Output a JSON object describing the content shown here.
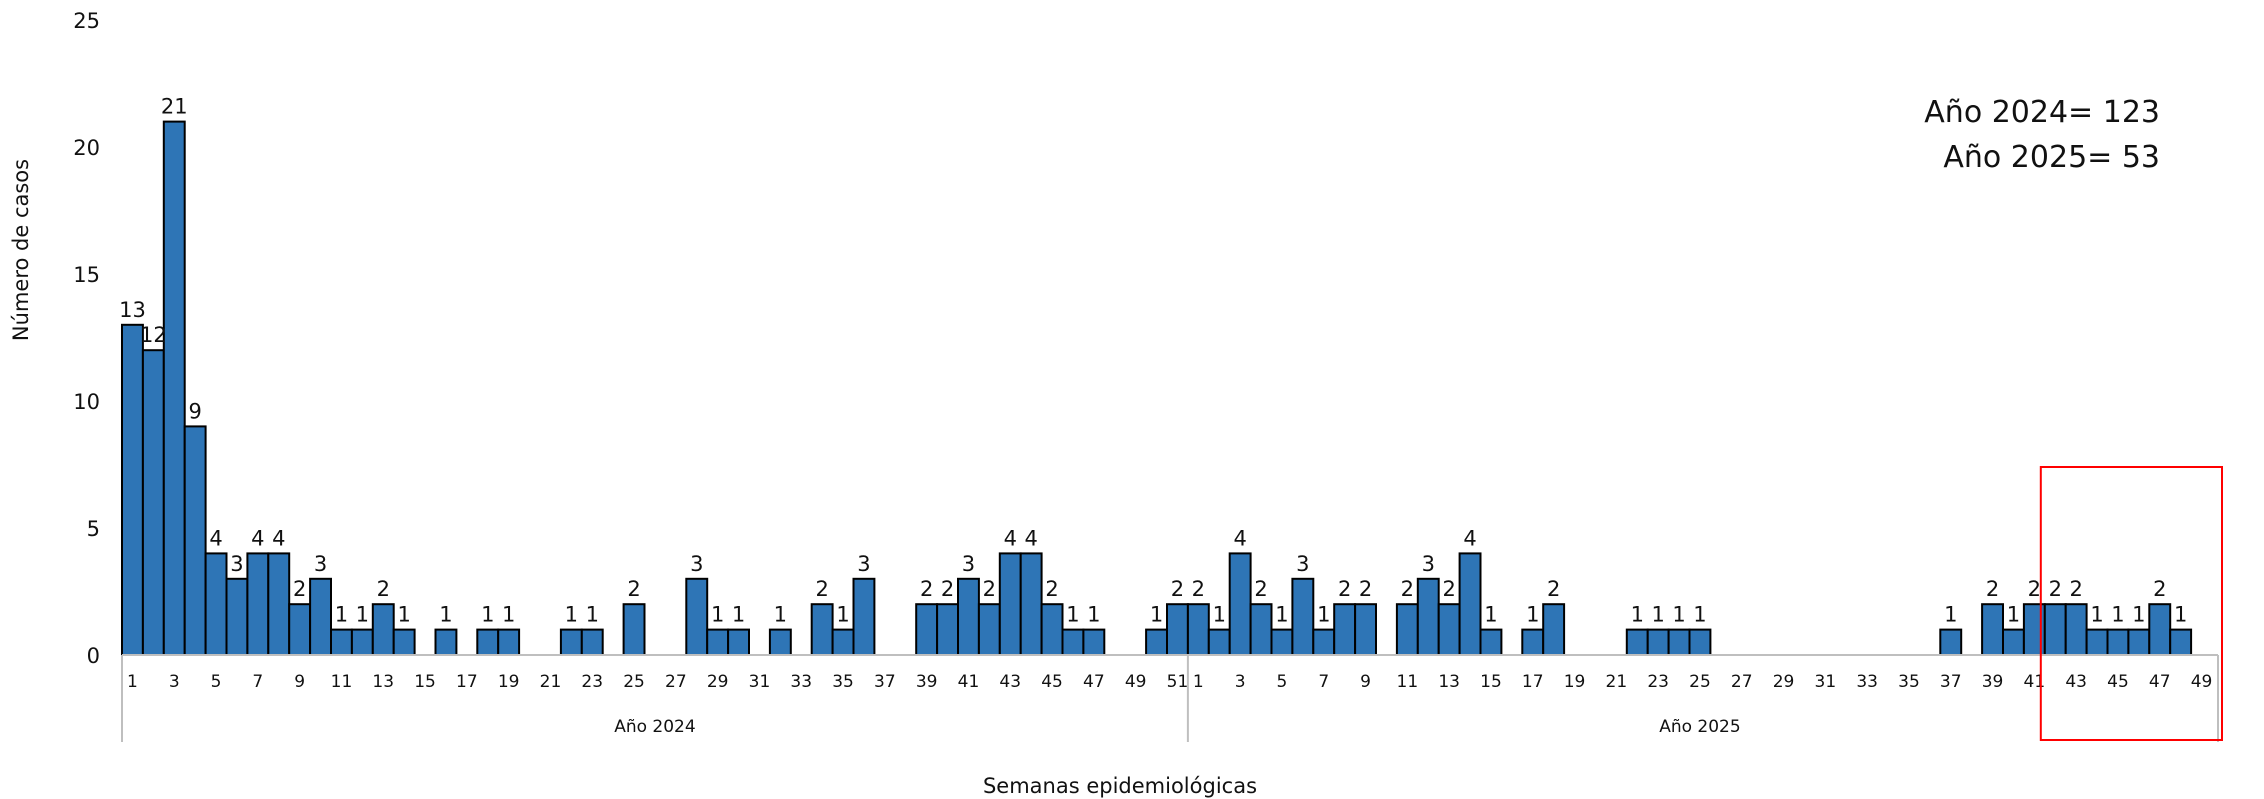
{
  "chart_data": {
    "type": "bar",
    "xlabel": "Semanas epidemiológicas",
    "ylabel": "Número de casos",
    "ylim": [
      0,
      25
    ],
    "yticks": [
      0,
      5,
      10,
      15,
      20,
      25
    ],
    "grid": false,
    "bar_color": "#2E75B6",
    "highlight_color": "#FF0000",
    "annotation_lines": [
      "Año 2024= 123",
      "Año 2025= 53"
    ],
    "groups": [
      {
        "label": "Año 2024",
        "weeks": [
          1,
          2,
          3,
          4,
          5,
          6,
          7,
          8,
          9,
          10,
          11,
          12,
          13,
          14,
          15,
          16,
          17,
          18,
          19,
          20,
          21,
          22,
          23,
          24,
          25,
          26,
          27,
          28,
          29,
          30,
          31,
          32,
          33,
          34,
          35,
          36,
          37,
          38,
          39,
          40,
          41,
          42,
          43,
          44,
          45,
          46,
          47,
          48,
          49,
          50,
          51
        ],
        "values": [
          13,
          12,
          21,
          9,
          4,
          3,
          4,
          4,
          2,
          3,
          1,
          1,
          2,
          1,
          0,
          1,
          0,
          1,
          1,
          0,
          0,
          1,
          1,
          0,
          2,
          0,
          0,
          3,
          1,
          1,
          0,
          1,
          0,
          2,
          1,
          3,
          0,
          0,
          2,
          2,
          3,
          2,
          4,
          4,
          2,
          1,
          1,
          0,
          0,
          1,
          2
        ],
        "tick_labels": [
          "1",
          "3",
          "5",
          "7",
          "9",
          "11",
          "13",
          "15",
          "17",
          "19",
          "21",
          "23",
          "25",
          "27",
          "29",
          "31",
          "33",
          "35",
          "37",
          "39",
          "41",
          "43",
          "45",
          "47",
          "49",
          "51"
        ]
      },
      {
        "label": "Año 2025",
        "weeks": [
          1,
          2,
          3,
          4,
          5,
          6,
          7,
          8,
          9,
          10,
          11,
          12,
          13,
          14,
          15,
          16,
          17,
          18,
          19,
          20,
          21,
          22,
          23,
          24,
          25,
          26,
          27,
          28,
          29,
          30,
          31,
          32,
          33,
          34,
          35,
          36,
          37,
          38,
          39,
          40,
          41,
          42,
          43,
          44,
          45,
          46,
          47,
          48,
          49
        ],
        "values": [
          2,
          1,
          4,
          2,
          1,
          3,
          1,
          2,
          2,
          0,
          2,
          3,
          2,
          4,
          1,
          0,
          1,
          2,
          0,
          0,
          0,
          1,
          1,
          1,
          1,
          0,
          0,
          0,
          0,
          0,
          0,
          0,
          0,
          0,
          0,
          0,
          1,
          0,
          2,
          1,
          2,
          2,
          2,
          1,
          1,
          1,
          2,
          1,
          0
        ],
        "tick_labels": [
          "1",
          "3",
          "5",
          "7",
          "9",
          "11",
          "13",
          "15",
          "17",
          "19",
          "21",
          "23",
          "25",
          "27",
          "29",
          "31",
          "33",
          "35",
          "37",
          "39",
          "41",
          "43",
          "45",
          "47",
          "49"
        ]
      }
    ],
    "highlight_weeks": {
      "group": "Año 2025",
      "from": 42,
      "to": 49
    }
  }
}
